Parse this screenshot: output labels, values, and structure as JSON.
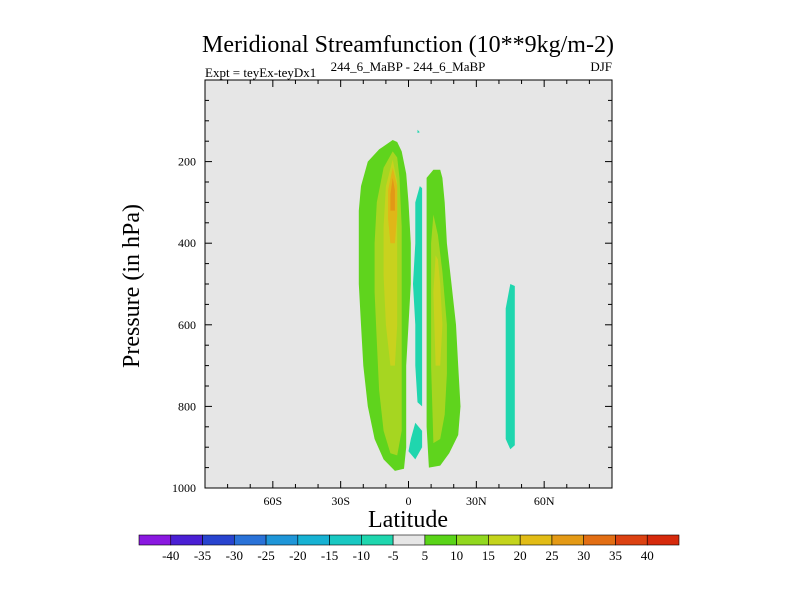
{
  "chart_data": {
    "type": "heatmap",
    "title": "Meridional Streamfunction (10**9kg/m-2)",
    "left_string": "Expt = teyEx-teyDx1",
    "center_string": "244_6_MaBP - 244_6_MaBP",
    "right_string": "DJF",
    "xlabel": "Latitude",
    "ylabel": "Pressure (in hPa)",
    "xlim": [
      -90,
      90
    ],
    "ylim": [
      1000,
      0
    ],
    "x_ticks": [
      {
        "value": -60,
        "label": "60S"
      },
      {
        "value": -30,
        "label": "30S"
      },
      {
        "value": 0,
        "label": "0"
      },
      {
        "value": 30,
        "label": "30N"
      },
      {
        "value": 60,
        "label": "60N"
      }
    ],
    "y_ticks": [
      {
        "value": 200,
        "label": "200"
      },
      {
        "value": 400,
        "label": "400"
      },
      {
        "value": 600,
        "label": "600"
      },
      {
        "value": 800,
        "label": "800"
      },
      {
        "value": 1000,
        "label": "1000"
      }
    ],
    "background_color": "#e6e6e6",
    "contour_levels": [
      -40,
      -35,
      -30,
      -25,
      -20,
      -15,
      -10,
      -5,
      5,
      10,
      15,
      20,
      25,
      30,
      35,
      40
    ],
    "colorbar_colors": [
      "#8a18e0",
      "#4a1fd4",
      "#2844cf",
      "#2a72d8",
      "#1f96d8",
      "#17b2d3",
      "#19c8c2",
      "#1fd6ae",
      "#e6e6e6",
      "#5ad418",
      "#92d81f",
      "#c4d41c",
      "#e2bc16",
      "#e49a16",
      "#e26e14",
      "#dc4212",
      "#d62a0c"
    ],
    "regions": [
      {
        "name": "southern-cell-outer",
        "value": 5,
        "color": "#5fd41d",
        "outline": [
          [
            -7,
            147
          ],
          [
            -13,
            170
          ],
          [
            -18,
            200
          ],
          [
            -21,
            260
          ],
          [
            -22,
            320
          ],
          [
            -22,
            400
          ],
          [
            -22,
            500
          ],
          [
            -21,
            600
          ],
          [
            -20,
            700
          ],
          [
            -18,
            800
          ],
          [
            -15,
            880
          ],
          [
            -11,
            930
          ],
          [
            -6,
            958
          ],
          [
            -2,
            953
          ],
          [
            -1,
            900
          ],
          [
            -1,
            800
          ],
          [
            -1,
            700
          ],
          [
            0,
            600
          ],
          [
            1,
            500
          ],
          [
            1,
            400
          ],
          [
            0,
            300
          ],
          [
            -1,
            230
          ],
          [
            -3,
            175
          ],
          [
            -5,
            152
          ]
        ]
      },
      {
        "name": "southern-cell-10",
        "value": 10,
        "color": "#a6d621",
        "outline": [
          [
            -7,
            175
          ],
          [
            -11,
            215
          ],
          [
            -14,
            300
          ],
          [
            -15,
            400
          ],
          [
            -15,
            520
          ],
          [
            -14,
            640
          ],
          [
            -13,
            760
          ],
          [
            -11,
            860
          ],
          [
            -8,
            915
          ],
          [
            -5,
            920
          ],
          [
            -3,
            860
          ],
          [
            -3,
            740
          ],
          [
            -3,
            620
          ],
          [
            -3,
            480
          ],
          [
            -3,
            360
          ],
          [
            -4,
            240
          ],
          [
            -5,
            190
          ]
        ]
      },
      {
        "name": "southern-cell-15",
        "value": 15,
        "color": "#c8d21e",
        "outline": [
          [
            -7,
            195
          ],
          [
            -10,
            260
          ],
          [
            -11,
            360
          ],
          [
            -11,
            480
          ],
          [
            -10,
            600
          ],
          [
            -8,
            700
          ],
          [
            -6,
            700
          ],
          [
            -5,
            600
          ],
          [
            -5,
            480
          ],
          [
            -5,
            360
          ],
          [
            -5,
            250
          ]
        ]
      },
      {
        "name": "southern-cell-20",
        "value": 20,
        "color": "#e0b618",
        "outline": [
          [
            -7,
            215
          ],
          [
            -9,
            270
          ],
          [
            -9,
            340
          ],
          [
            -8,
            400
          ],
          [
            -6,
            400
          ],
          [
            -5,
            330
          ],
          [
            -5,
            260
          ]
        ]
      },
      {
        "name": "southern-cell-25",
        "value": 25,
        "color": "#e29816",
        "outline": [
          [
            -7,
            240
          ],
          [
            -8,
            280
          ],
          [
            -8,
            320
          ],
          [
            -6,
            320
          ],
          [
            -6,
            270
          ]
        ]
      },
      {
        "name": "northern-cell-outer",
        "value": 5,
        "color": "#5fd41d",
        "outline": [
          [
            11,
            220
          ],
          [
            8,
            240
          ],
          [
            8,
            350
          ],
          [
            8,
            500
          ],
          [
            8,
            700
          ],
          [
            8,
            850
          ],
          [
            9,
            950
          ],
          [
            14,
            945
          ],
          [
            18,
            915
          ],
          [
            22,
            870
          ],
          [
            23,
            800
          ],
          [
            22,
            700
          ],
          [
            21,
            600
          ],
          [
            19,
            500
          ],
          [
            17,
            400
          ],
          [
            16,
            300
          ],
          [
            15,
            240
          ],
          [
            14,
            220
          ]
        ]
      },
      {
        "name": "northern-cell-10",
        "value": 10,
        "color": "#a6d621",
        "outline": [
          [
            11,
            330
          ],
          [
            10,
            400
          ],
          [
            10,
            550
          ],
          [
            10,
            700
          ],
          [
            11,
            890
          ],
          [
            14,
            880
          ],
          [
            16,
            820
          ],
          [
            17,
            720
          ],
          [
            17,
            600
          ],
          [
            15,
            470
          ],
          [
            13,
            380
          ]
        ]
      },
      {
        "name": "northern-cell-15",
        "value": 15,
        "color": "#c8d21e",
        "outline": [
          [
            12,
            430
          ],
          [
            11,
            520
          ],
          [
            12,
            700
          ],
          [
            14,
            700
          ],
          [
            15,
            600
          ],
          [
            14,
            500
          ],
          [
            13,
            440
          ]
        ]
      },
      {
        "name": "negative-cell-central",
        "value": -5,
        "color": "#1fd6ae",
        "outline": [
          [
            5,
            260
          ],
          [
            3,
            300
          ],
          [
            3,
            400
          ],
          [
            2,
            500
          ],
          [
            3,
            600
          ],
          [
            3,
            700
          ],
          [
            4,
            790
          ],
          [
            6,
            800
          ],
          [
            6,
            700
          ],
          [
            6,
            600
          ],
          [
            6,
            500
          ],
          [
            6,
            400
          ],
          [
            6,
            300
          ],
          [
            6,
            265
          ]
        ]
      },
      {
        "name": "negative-cell-surface",
        "value": -5,
        "color": "#1fd6ae",
        "outline": [
          [
            3,
            840
          ],
          [
            1,
            880
          ],
          [
            0,
            910
          ],
          [
            3,
            930
          ],
          [
            6,
            900
          ],
          [
            6,
            860
          ]
        ]
      },
      {
        "name": "negative-cell-tiny",
        "value": -5,
        "color": "#1fd6ae",
        "outline": [
          [
            4,
            122
          ],
          [
            4,
            130
          ],
          [
            5,
            128
          ]
        ]
      },
      {
        "name": "negative-cell-north",
        "value": -5,
        "color": "#1fd6ae",
        "outline": [
          [
            45,
            500
          ],
          [
            43,
            560
          ],
          [
            43,
            650
          ],
          [
            43,
            800
          ],
          [
            43,
            880
          ],
          [
            45,
            905
          ],
          [
            47,
            895
          ],
          [
            47,
            800
          ],
          [
            47,
            650
          ],
          [
            47,
            550
          ],
          [
            47,
            505
          ]
        ]
      }
    ]
  }
}
